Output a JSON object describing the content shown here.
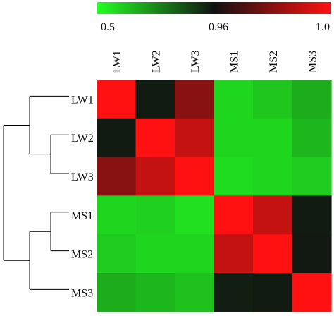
{
  "chart_data": {
    "type": "heatmap",
    "title": "",
    "rows": [
      "LW1",
      "LW2",
      "LW3",
      "MS1",
      "MS2",
      "MS3"
    ],
    "columns": [
      "LW1",
      "LW2",
      "LW3",
      "MS1",
      "MS2",
      "MS3"
    ],
    "values": [
      [
        1.0,
        0.94,
        0.98,
        0.58,
        0.61,
        0.66
      ],
      [
        0.94,
        1.0,
        0.99,
        0.58,
        0.58,
        0.64
      ],
      [
        0.98,
        0.99,
        1.0,
        0.57,
        0.58,
        0.6
      ],
      [
        0.58,
        0.59,
        0.56,
        1.0,
        0.99,
        0.94
      ],
      [
        0.6,
        0.58,
        0.58,
        0.99,
        1.0,
        0.945
      ],
      [
        0.66,
        0.64,
        0.62,
        0.935,
        0.94,
        1.0
      ]
    ],
    "color_scale": {
      "min": 0.5,
      "mid": 0.96,
      "max": 1.0,
      "min_color": "#22ff22",
      "mid_color": "#111111",
      "max_color": "#ff1111",
      "tick_labels": [
        "0.5",
        "0.96",
        "1.0"
      ]
    },
    "dendrogram": {
      "clusters": [
        [
          "LW1",
          [
            "LW2",
            "LW3"
          ]
        ],
        [
          [
            "MS1",
            "MS2"
          ],
          "MS3"
        ]
      ]
    },
    "legend": "top"
  }
}
